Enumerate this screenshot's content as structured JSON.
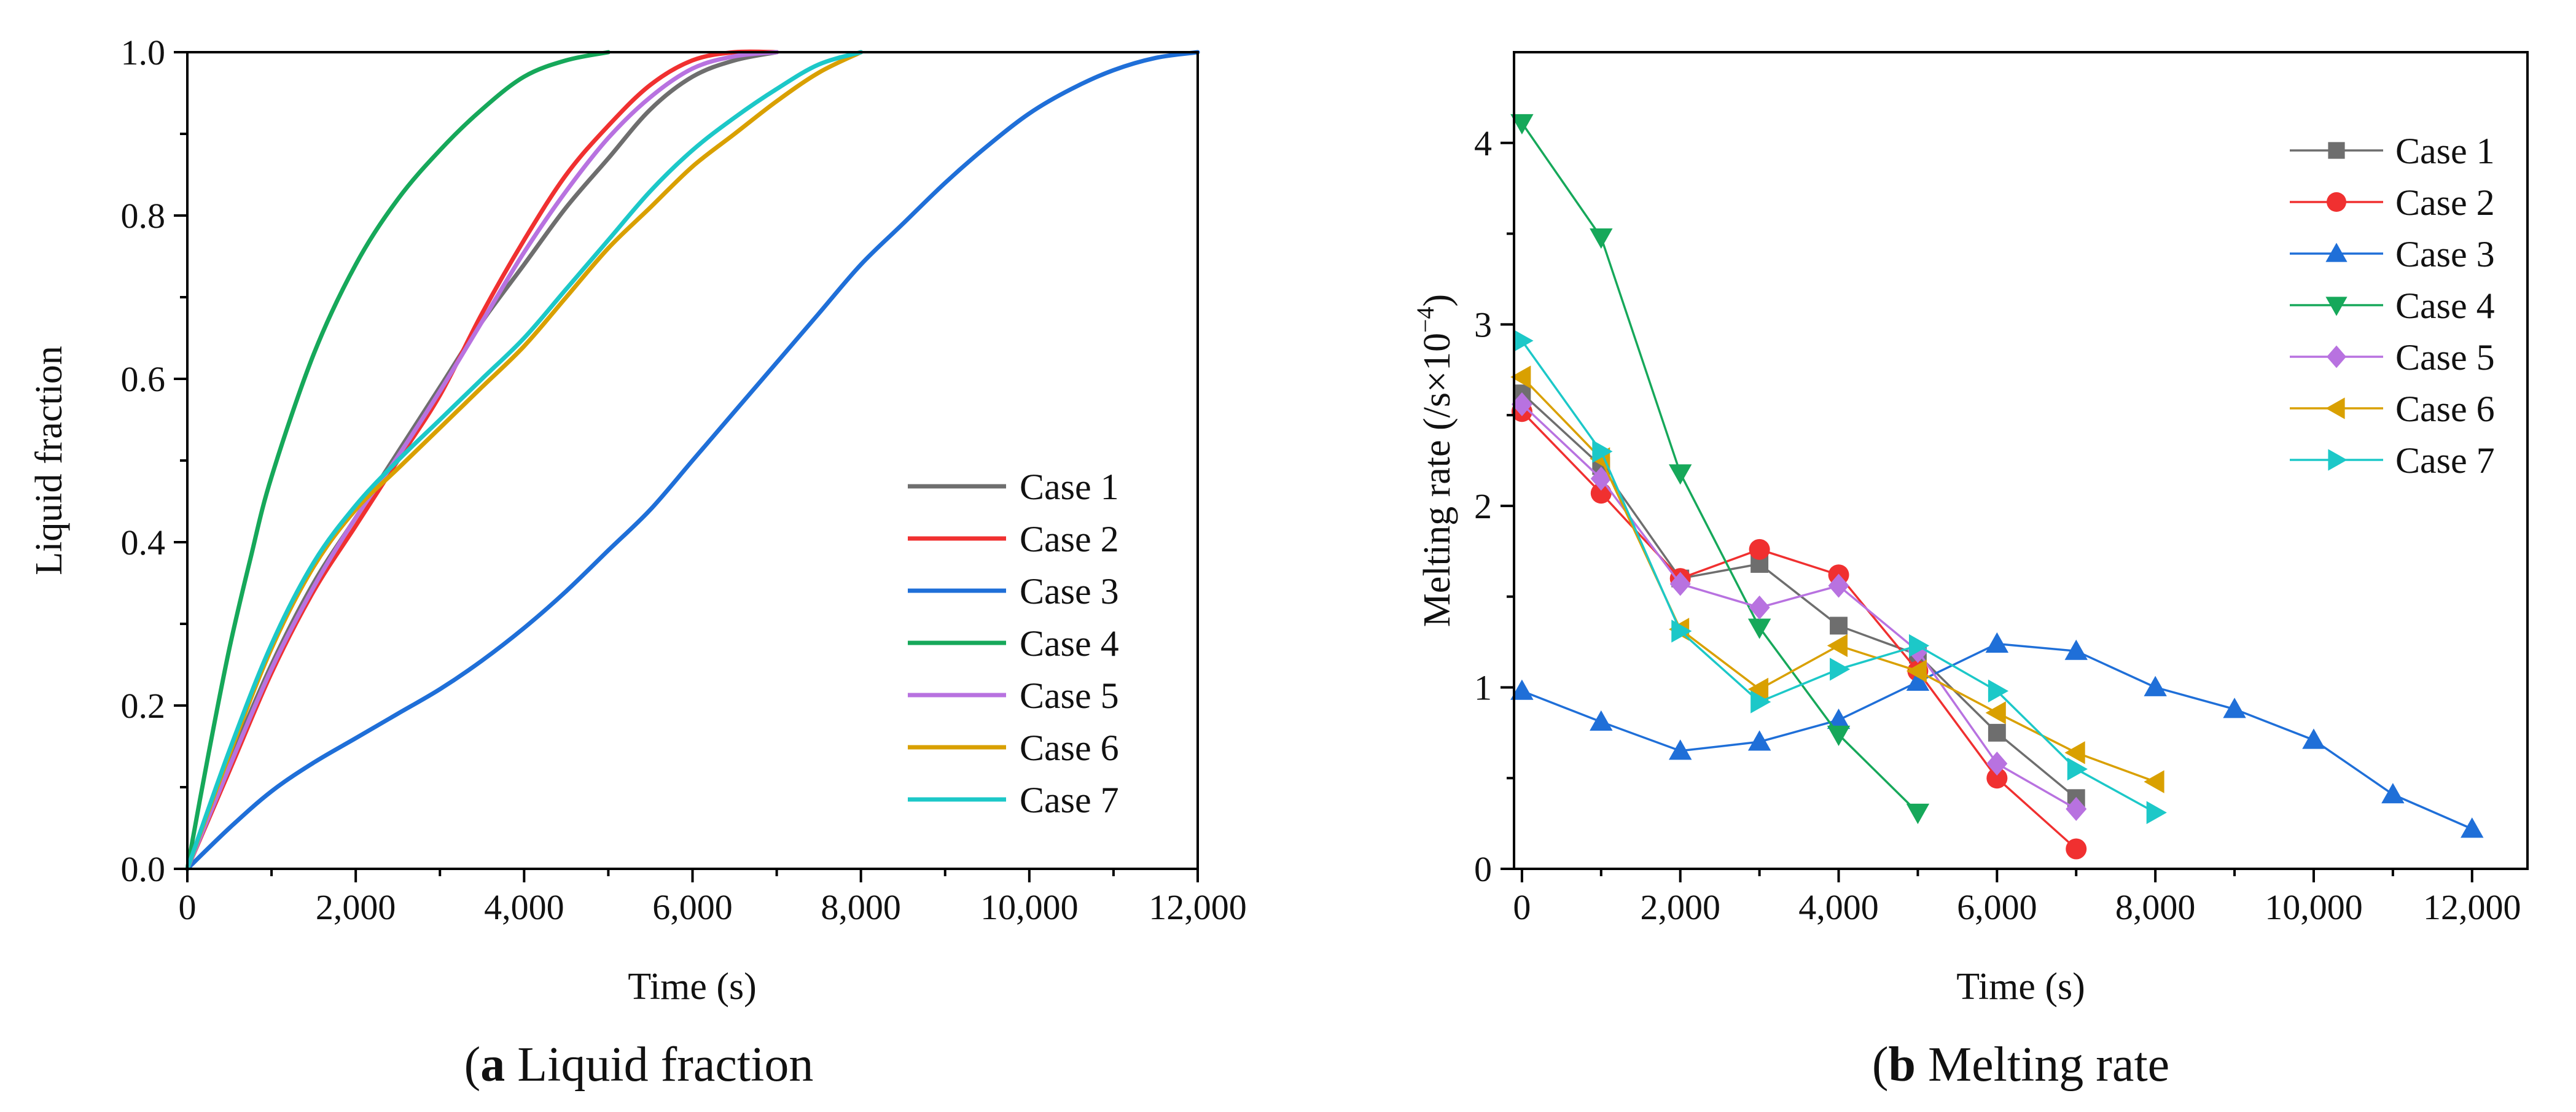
{
  "chart_data": [
    {
      "type": "line",
      "panel": "a",
      "caption_bold": "a",
      "caption_rest": " Liquid fraction",
      "xlabel": "Time (s)",
      "ylabel": "Liquid fraction",
      "xlim": [
        0,
        12000
      ],
      "ylim": [
        0,
        1.0
      ],
      "xticks": [
        0,
        2000,
        4000,
        6000,
        8000,
        10000,
        12000
      ],
      "xtick_labels": [
        "0",
        "2,000",
        "4,000",
        "6,000",
        "8,000",
        "10,000",
        "12,000"
      ],
      "yticks": [
        0,
        0.2,
        0.4,
        0.6,
        0.8,
        1.0
      ],
      "ytick_labels": [
        "0.0",
        "0.2",
        "0.4",
        "0.6",
        "0.8",
        "1.0"
      ],
      "legend_position": "center-right",
      "series": [
        {
          "name": "Case 1",
          "color": "#6e6e6e",
          "x": [
            0,
            500,
            1000,
            1500,
            2000,
            2500,
            3000,
            3500,
            4000,
            4500,
            5000,
            5500,
            6000,
            6500,
            7000
          ],
          "y": [
            0,
            0.13,
            0.25,
            0.35,
            0.43,
            0.51,
            0.59,
            0.67,
            0.74,
            0.81,
            0.87,
            0.93,
            0.97,
            0.99,
            1.0
          ]
        },
        {
          "name": "Case 2",
          "color": "#f03030",
          "x": [
            0,
            500,
            1000,
            1500,
            2000,
            2500,
            3000,
            3500,
            4000,
            4500,
            5000,
            5500,
            6000,
            6500,
            7000
          ],
          "y": [
            0,
            0.12,
            0.24,
            0.34,
            0.42,
            0.5,
            0.58,
            0.68,
            0.77,
            0.85,
            0.91,
            0.96,
            0.99,
            1.0,
            1.0
          ]
        },
        {
          "name": "Case 3",
          "color": "#1f6fd8",
          "x": [
            0,
            500,
            1000,
            1500,
            2000,
            2500,
            3000,
            3500,
            4000,
            4500,
            5000,
            5500,
            6000,
            6500,
            7000,
            7500,
            8000,
            8500,
            9000,
            9500,
            10000,
            10500,
            11000,
            11500,
            12000
          ],
          "y": [
            0,
            0.05,
            0.095,
            0.13,
            0.16,
            0.19,
            0.22,
            0.255,
            0.295,
            0.34,
            0.39,
            0.44,
            0.5,
            0.56,
            0.62,
            0.68,
            0.74,
            0.79,
            0.84,
            0.885,
            0.925,
            0.955,
            0.978,
            0.993,
            1.0
          ]
        },
        {
          "name": "Case 4",
          "color": "#16a85a",
          "x": [
            0,
            250,
            500,
            750,
            1000,
            1500,
            2000,
            2500,
            3000,
            3500,
            4000,
            4500,
            5000
          ],
          "y": [
            0,
            0.14,
            0.27,
            0.38,
            0.48,
            0.63,
            0.74,
            0.82,
            0.88,
            0.93,
            0.97,
            0.99,
            1.0
          ]
        },
        {
          "name": "Case 5",
          "color": "#b872e0",
          "x": [
            0,
            500,
            1000,
            1500,
            2000,
            2500,
            3000,
            3500,
            4000,
            4500,
            5000,
            5500,
            6000,
            6500,
            7000
          ],
          "y": [
            0,
            0.125,
            0.245,
            0.345,
            0.43,
            0.505,
            0.585,
            0.67,
            0.755,
            0.83,
            0.895,
            0.945,
            0.98,
            0.995,
            1.0
          ]
        },
        {
          "name": "Case 6",
          "color": "#d9a000",
          "x": [
            0,
            500,
            1000,
            1500,
            2000,
            2500,
            3000,
            3500,
            4000,
            4500,
            5000,
            5500,
            6000,
            6500,
            7000,
            7500,
            8000
          ],
          "y": [
            0,
            0.14,
            0.27,
            0.37,
            0.44,
            0.49,
            0.54,
            0.59,
            0.64,
            0.7,
            0.76,
            0.81,
            0.86,
            0.9,
            0.94,
            0.975,
            1.0
          ]
        },
        {
          "name": "Case 7",
          "color": "#1cc8c8",
          "x": [
            0,
            500,
            1000,
            1500,
            2000,
            2500,
            3000,
            3500,
            4000,
            4500,
            5000,
            5500,
            6000,
            6500,
            7000,
            7500,
            8000
          ],
          "y": [
            0,
            0.145,
            0.275,
            0.375,
            0.445,
            0.5,
            0.55,
            0.6,
            0.65,
            0.71,
            0.77,
            0.83,
            0.88,
            0.92,
            0.955,
            0.985,
            1.0
          ]
        }
      ]
    },
    {
      "type": "line",
      "panel": "b",
      "caption_bold": "b",
      "caption_rest": " Melting rate",
      "xlabel": "Time (s)",
      "ylabel_main": "Melting rate  (/s×10",
      "ylabel_sup": "−4",
      "ylabel_end": ")",
      "xlim": [
        -100,
        12700
      ],
      "ylim": [
        0,
        4.5
      ],
      "xticks": [
        0,
        2000,
        4000,
        6000,
        8000,
        10000,
        12000
      ],
      "xtick_labels": [
        "0",
        "2,000",
        "4,000",
        "6,000",
        "8,000",
        "10,000",
        "12,000"
      ],
      "yticks": [
        0,
        1,
        2,
        3,
        4
      ],
      "ytick_labels": [
        "0",
        "1",
        "2",
        "3",
        "4"
      ],
      "legend_position": "top-right",
      "series": [
        {
          "name": "Case 1",
          "color": "#6e6e6e",
          "marker": "square",
          "x": [
            0,
            1000,
            2000,
            3000,
            4000,
            5000,
            6000,
            7000
          ],
          "y": [
            2.62,
            2.22,
            1.6,
            1.68,
            1.34,
            1.18,
            0.75,
            0.39
          ]
        },
        {
          "name": "Case 2",
          "color": "#f03030",
          "marker": "circle",
          "x": [
            0,
            1000,
            2000,
            3000,
            4000,
            5000,
            6000,
            7000
          ],
          "y": [
            2.52,
            2.07,
            1.6,
            1.76,
            1.62,
            1.09,
            0.5,
            0.11
          ]
        },
        {
          "name": "Case 3",
          "color": "#1f6fd8",
          "marker": "triangle-up",
          "x": [
            0,
            1000,
            2000,
            3000,
            4000,
            5000,
            6000,
            7000,
            8000,
            9000,
            10000,
            11000,
            12000
          ],
          "y": [
            0.98,
            0.81,
            0.65,
            0.7,
            0.82,
            1.03,
            1.24,
            1.2,
            1.0,
            0.88,
            0.71,
            0.41,
            0.22
          ]
        },
        {
          "name": "Case 4",
          "color": "#16a85a",
          "marker": "triangle-down",
          "x": [
            0,
            1000,
            2000,
            3000,
            4000,
            5000
          ],
          "y": [
            4.11,
            3.48,
            2.18,
            1.33,
            0.74,
            0.31
          ]
        },
        {
          "name": "Case 5",
          "color": "#b872e0",
          "marker": "diamond",
          "x": [
            0,
            1000,
            2000,
            3000,
            4000,
            5000,
            6000,
            7000
          ],
          "y": [
            2.56,
            2.15,
            1.57,
            1.44,
            1.56,
            1.2,
            0.58,
            0.33
          ]
        },
        {
          "name": "Case 6",
          "color": "#d9a000",
          "marker": "triangle-left",
          "x": [
            0,
            1000,
            2000,
            3000,
            4000,
            5000,
            6000,
            7000,
            8000
          ],
          "y": [
            2.71,
            2.26,
            1.32,
            0.99,
            1.23,
            1.09,
            0.86,
            0.64,
            0.48
          ]
        },
        {
          "name": "Case 7",
          "color": "#1cc8c8",
          "marker": "triangle-right",
          "x": [
            0,
            1000,
            2000,
            3000,
            4000,
            5000,
            6000,
            7000,
            8000
          ],
          "y": [
            2.91,
            2.3,
            1.31,
            0.92,
            1.1,
            1.23,
            0.98,
            0.55,
            0.31
          ]
        }
      ]
    }
  ]
}
